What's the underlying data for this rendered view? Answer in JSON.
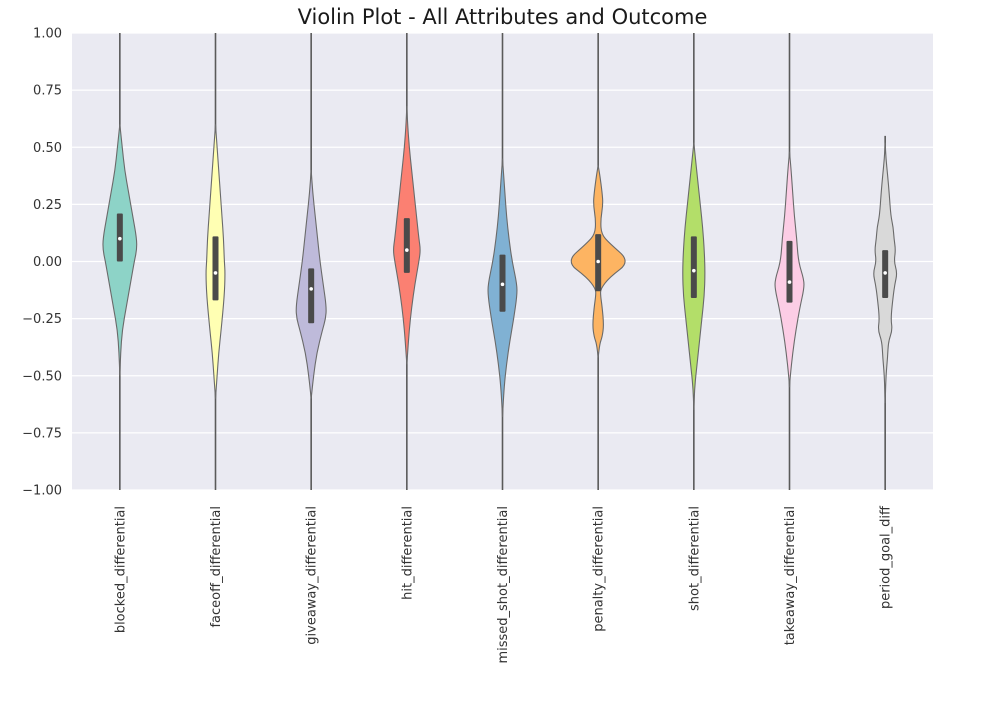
{
  "chart_data": {
    "type": "violin",
    "title": "Violin Plot - All Attributes and Outcome",
    "xlabel": "",
    "ylabel": "",
    "ylim": [
      -1.0,
      1.0
    ],
    "yticks": [
      1.0,
      0.75,
      0.5,
      0.25,
      0.0,
      -0.25,
      -0.5,
      -0.75,
      -1.0
    ],
    "ytick_labels": [
      "1.00",
      "0.75",
      "0.50",
      "0.25",
      "0.00",
      "−0.25",
      "−0.50",
      "−0.75",
      "−1.00"
    ],
    "grid": true,
    "categories": [
      "blocked_differential",
      "faceoff_differential",
      "giveaway_differential",
      "hit_differential",
      "missed_shot_differential",
      "penalty_differential",
      "shot_differential",
      "takeaway_differential",
      "period_goal_diff"
    ],
    "violins": [
      {
        "name": "blocked_differential",
        "color": "#8dd3c7",
        "line_extent": [
          -1.0,
          1.0
        ],
        "q1": 0.0,
        "median": 0.1,
        "q3": 0.21,
        "shape": [
          [
            0.6,
            0.0
          ],
          [
            0.5,
            0.06
          ],
          [
            0.4,
            0.12
          ],
          [
            0.3,
            0.22
          ],
          [
            0.2,
            0.32
          ],
          [
            0.1,
            0.42
          ],
          [
            0.05,
            0.42
          ],
          [
            0.0,
            0.36
          ],
          [
            -0.1,
            0.26
          ],
          [
            -0.2,
            0.16
          ],
          [
            -0.3,
            0.06
          ],
          [
            -0.4,
            0.02
          ],
          [
            -0.5,
            0.0
          ]
        ]
      },
      {
        "name": "faceoff_differential",
        "color": "#ffffb3",
        "line_extent": [
          -1.0,
          1.0
        ],
        "q1": -0.17,
        "median": -0.05,
        "q3": 0.11,
        "shape": [
          [
            0.6,
            0.0
          ],
          [
            0.5,
            0.04
          ],
          [
            0.4,
            0.08
          ],
          [
            0.3,
            0.12
          ],
          [
            0.2,
            0.16
          ],
          [
            0.1,
            0.2
          ],
          [
            0.0,
            0.22
          ],
          [
            -0.05,
            0.24
          ],
          [
            -0.15,
            0.22
          ],
          [
            -0.3,
            0.14
          ],
          [
            -0.4,
            0.08
          ],
          [
            -0.5,
            0.04
          ],
          [
            -0.6,
            0.0
          ]
        ]
      },
      {
        "name": "giveaway_differential",
        "color": "#bebada",
        "line_extent": [
          -1.0,
          1.0
        ],
        "q1": -0.27,
        "median": -0.12,
        "q3": -0.03,
        "shape": [
          [
            0.4,
            0.0
          ],
          [
            0.3,
            0.04
          ],
          [
            0.2,
            0.1
          ],
          [
            0.1,
            0.16
          ],
          [
            0.0,
            0.22
          ],
          [
            -0.1,
            0.3
          ],
          [
            -0.2,
            0.38
          ],
          [
            -0.25,
            0.36
          ],
          [
            -0.3,
            0.28
          ],
          [
            -0.4,
            0.14
          ],
          [
            -0.5,
            0.06
          ],
          [
            -0.6,
            0.0
          ]
        ]
      },
      {
        "name": "hit_differential",
        "color": "#fb8072",
        "line_extent": [
          -1.0,
          1.0
        ],
        "q1": -0.05,
        "median": 0.05,
        "q3": 0.19,
        "shape": [
          [
            0.68,
            0.0
          ],
          [
            0.6,
            0.02
          ],
          [
            0.5,
            0.06
          ],
          [
            0.4,
            0.12
          ],
          [
            0.3,
            0.18
          ],
          [
            0.2,
            0.24
          ],
          [
            0.1,
            0.3
          ],
          [
            0.05,
            0.34
          ],
          [
            0.0,
            0.3
          ],
          [
            -0.1,
            0.2
          ],
          [
            -0.2,
            0.12
          ],
          [
            -0.3,
            0.06
          ],
          [
            -0.4,
            0.02
          ],
          [
            -0.45,
            0.0
          ]
        ]
      },
      {
        "name": "missed_shot_differential",
        "color": "#80b1d3",
        "line_extent": [
          -1.0,
          1.0
        ],
        "q1": -0.22,
        "median": -0.1,
        "q3": 0.03,
        "shape": [
          [
            0.45,
            0.0
          ],
          [
            0.3,
            0.06
          ],
          [
            0.2,
            0.1
          ],
          [
            0.1,
            0.16
          ],
          [
            0.0,
            0.24
          ],
          [
            -0.1,
            0.36
          ],
          [
            -0.15,
            0.36
          ],
          [
            -0.25,
            0.28
          ],
          [
            -0.35,
            0.18
          ],
          [
            -0.45,
            0.1
          ],
          [
            -0.55,
            0.04
          ],
          [
            -0.68,
            0.0
          ]
        ]
      },
      {
        "name": "penalty_differential",
        "color": "#fdb462",
        "line_extent": [
          -1.0,
          1.0
        ],
        "q1": -0.13,
        "median": 0.0,
        "q3": 0.12,
        "shape": [
          [
            0.42,
            0.0
          ],
          [
            0.38,
            0.04
          ],
          [
            0.3,
            0.1
          ],
          [
            0.25,
            0.12
          ],
          [
            0.18,
            0.06
          ],
          [
            0.12,
            0.08
          ],
          [
            0.08,
            0.28
          ],
          [
            0.0,
            0.8
          ],
          [
            -0.07,
            0.28
          ],
          [
            -0.12,
            0.06
          ],
          [
            -0.15,
            0.06
          ],
          [
            -0.2,
            0.1
          ],
          [
            -0.28,
            0.14
          ],
          [
            -0.33,
            0.1
          ],
          [
            -0.36,
            0.04
          ],
          [
            -0.42,
            0.0
          ]
        ]
      },
      {
        "name": "shot_differential",
        "color": "#b3de69",
        "line_extent": [
          -1.0,
          1.0
        ],
        "q1": -0.16,
        "median": -0.04,
        "q3": 0.11,
        "shape": [
          [
            0.52,
            0.0
          ],
          [
            0.45,
            0.04
          ],
          [
            0.35,
            0.1
          ],
          [
            0.25,
            0.16
          ],
          [
            0.15,
            0.22
          ],
          [
            0.05,
            0.26
          ],
          [
            -0.05,
            0.28
          ],
          [
            -0.15,
            0.26
          ],
          [
            -0.25,
            0.2
          ],
          [
            -0.35,
            0.14
          ],
          [
            -0.45,
            0.08
          ],
          [
            -0.55,
            0.02
          ],
          [
            -0.65,
            0.0
          ]
        ]
      },
      {
        "name": "takeaway_differential",
        "color": "#fccde5",
        "line_extent": [
          -1.0,
          1.0
        ],
        "q1": -0.18,
        "median": -0.09,
        "q3": 0.09,
        "shape": [
          [
            0.48,
            0.0
          ],
          [
            0.4,
            0.04
          ],
          [
            0.3,
            0.08
          ],
          [
            0.2,
            0.12
          ],
          [
            0.1,
            0.18
          ],
          [
            0.0,
            0.22
          ],
          [
            -0.08,
            0.36
          ],
          [
            -0.12,
            0.36
          ],
          [
            -0.2,
            0.26
          ],
          [
            -0.3,
            0.16
          ],
          [
            -0.4,
            0.08
          ],
          [
            -0.5,
            0.02
          ],
          [
            -0.55,
            0.0
          ]
        ]
      },
      {
        "name": "period_goal_diff",
        "color": "#d9d9d9",
        "line_extent": [
          -1.0,
          0.55
        ],
        "q1": -0.16,
        "median": -0.05,
        "q3": 0.05,
        "shape": [
          [
            0.52,
            0.0
          ],
          [
            0.45,
            0.02
          ],
          [
            0.38,
            0.06
          ],
          [
            0.3,
            0.1
          ],
          [
            0.2,
            0.14
          ],
          [
            0.15,
            0.2
          ],
          [
            0.1,
            0.22
          ],
          [
            0.05,
            0.26
          ],
          [
            0.0,
            0.22
          ],
          [
            -0.05,
            0.3
          ],
          [
            -0.1,
            0.24
          ],
          [
            -0.15,
            0.2
          ],
          [
            -0.25,
            0.14
          ],
          [
            -0.3,
            0.18
          ],
          [
            -0.35,
            0.08
          ],
          [
            -0.42,
            0.06
          ],
          [
            -0.5,
            0.02
          ],
          [
            -0.62,
            0.0
          ]
        ]
      }
    ]
  }
}
